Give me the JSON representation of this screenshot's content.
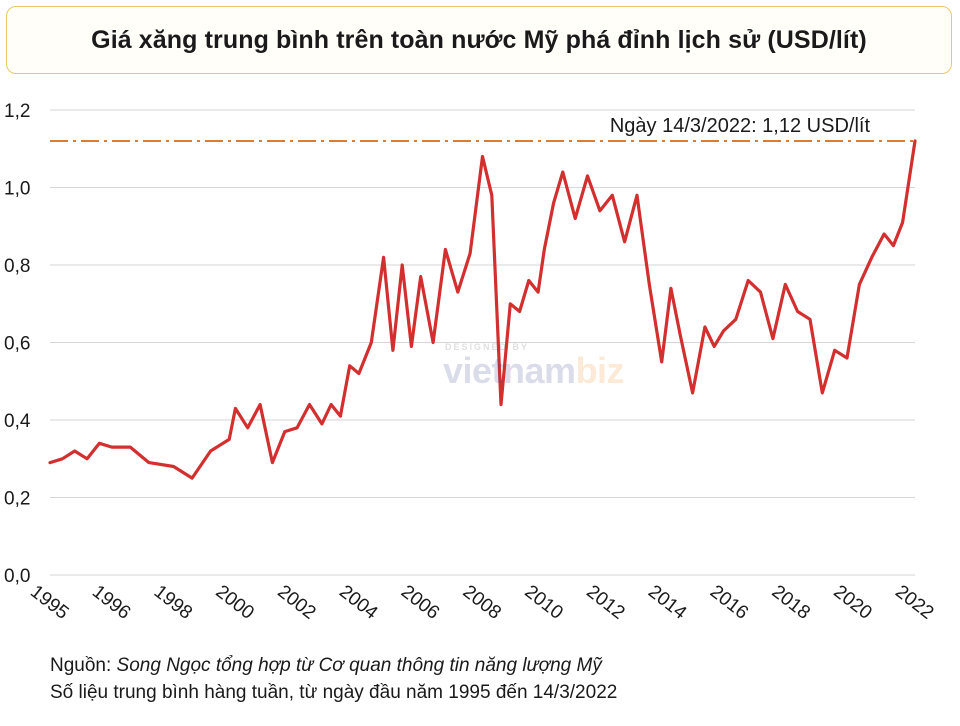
{
  "header": {
    "title": "Giá xăng trung bình trên toàn nước Mỹ phá đỉnh lịch sử (USD/lít)"
  },
  "footer": {
    "source_label": "Nguồn: ",
    "source_text": "Song Ngọc tổng hợp từ Cơ quan thông tin năng lượng Mỹ",
    "note": "Số liệu trung bình hàng tuần, từ ngày đầu năm 1995 đến 14/3/2022"
  },
  "watermark": {
    "designed_by": "DESIGNED BY",
    "brand_a": "vietnam",
    "brand_b": "biz"
  },
  "chart_data": {
    "type": "line",
    "title": "Giá xăng trung bình trên toàn nước Mỹ phá đỉnh lịch sử (USD/lít)",
    "xlabel": "",
    "ylabel": "",
    "ylim": [
      0,
      1.2
    ],
    "y_ticks": [
      "0,0",
      "0,2",
      "0,4",
      "0,6",
      "0,8",
      "1,0",
      "1,2"
    ],
    "x_ticks": [
      "1995",
      "1996",
      "1998",
      "2000",
      "2002",
      "2004",
      "2006",
      "2008",
      "2010",
      "2012",
      "2014",
      "2016",
      "2018",
      "2020",
      "2022"
    ],
    "grid": "horizontal",
    "line_color": "#d32f2f",
    "reference_line": {
      "value": 1.12,
      "label": "Ngày 14/3/2022: 1,12 USD/lít",
      "color": "#e07b2e"
    },
    "series": [
      {
        "x_tick_index": [
          0,
          0.2,
          0.4,
          0.6,
          0.8,
          1.0,
          1.3,
          1.6,
          2.0,
          2.3,
          2.6,
          2.9,
          3.0,
          3.2,
          3.4,
          3.6,
          3.8,
          4.0,
          4.2,
          4.4,
          4.55,
          4.7,
          4.85,
          5.0,
          5.2,
          5.4,
          5.55,
          5.7,
          5.85,
          6.0,
          6.2,
          6.4,
          6.6,
          6.8,
          7.0,
          7.15,
          7.3,
          7.45,
          7.6,
          7.75,
          7.9,
          8.0,
          8.15,
          8.3,
          8.5,
          8.7,
          8.9,
          9.1,
          9.3,
          9.5,
          9.7,
          9.9,
          10.05,
          10.2,
          10.4,
          10.6,
          10.75,
          10.9,
          11.1,
          11.3,
          11.5,
          11.7,
          11.9,
          12.1,
          12.3,
          12.5,
          12.7,
          12.9,
          13.1,
          13.3,
          13.5,
          13.65,
          13.8,
          14.0
        ],
        "values": [
          0.29,
          0.3,
          0.32,
          0.3,
          0.34,
          0.33,
          0.33,
          0.29,
          0.28,
          0.25,
          0.32,
          0.35,
          0.43,
          0.38,
          0.44,
          0.29,
          0.37,
          0.38,
          0.44,
          0.39,
          0.44,
          0.41,
          0.54,
          0.52,
          0.6,
          0.82,
          0.58,
          0.8,
          0.59,
          0.77,
          0.6,
          0.84,
          0.73,
          0.83,
          1.08,
          0.98,
          0.44,
          0.7,
          0.68,
          0.76,
          0.73,
          0.84,
          0.96,
          1.04,
          0.92,
          1.03,
          0.94,
          0.98,
          0.86,
          0.98,
          0.75,
          0.55,
          0.74,
          0.62,
          0.47,
          0.64,
          0.59,
          0.63,
          0.66,
          0.76,
          0.73,
          0.61,
          0.75,
          0.68,
          0.66,
          0.47,
          0.58,
          0.56,
          0.75,
          0.82,
          0.88,
          0.85,
          0.91,
          1.12
        ]
      }
    ]
  }
}
